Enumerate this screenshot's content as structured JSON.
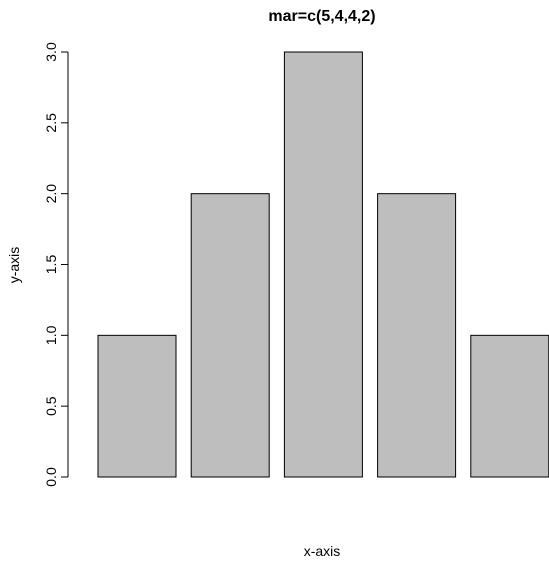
{
  "chart_data": {
    "type": "bar",
    "title": "mar=c(5,4,4,2)",
    "xlabel": "x-axis",
    "ylabel": "y-axis",
    "categories": [
      "",
      "",
      "",
      "",
      ""
    ],
    "values": [
      1,
      2,
      3,
      2,
      1
    ],
    "ylim": [
      0,
      3
    ],
    "yticks": [
      "0.0",
      "0.5",
      "1.0",
      "1.5",
      "2.0",
      "2.5",
      "3.0"
    ],
    "grid": false,
    "legend": "none",
    "bar_color": "#bebebe",
    "border_color": "#000000"
  }
}
